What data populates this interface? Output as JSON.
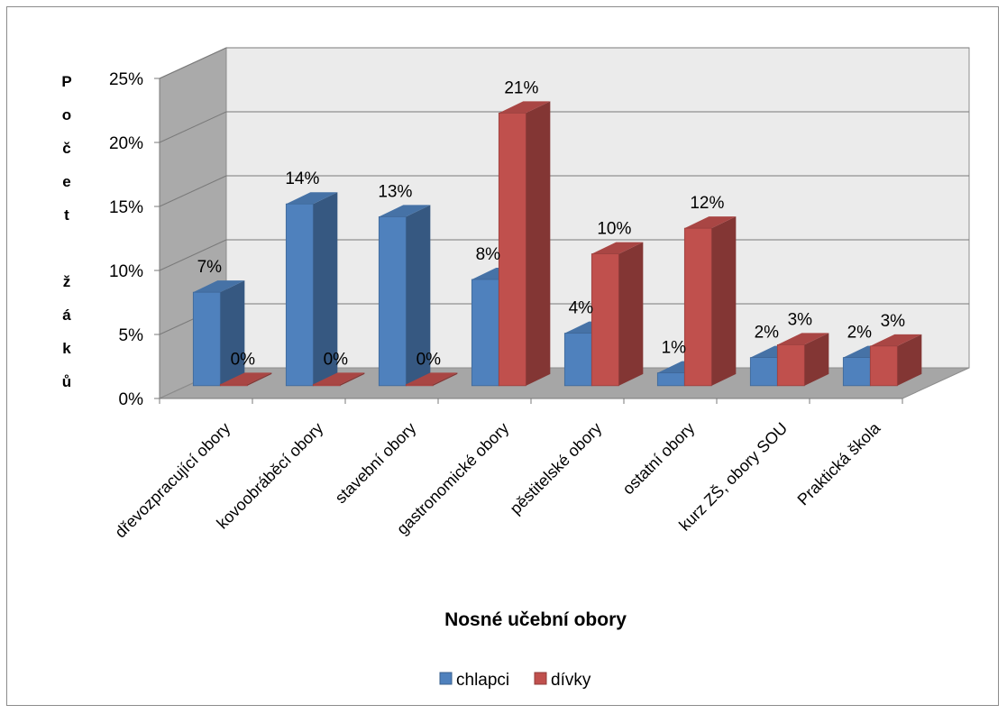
{
  "chart_data": {
    "type": "bar",
    "title": "",
    "xlabel": "Nosné učební obory",
    "ylabel_letters": [
      "P",
      "o",
      "č",
      "e",
      "t",
      "",
      "ž",
      "á",
      "k",
      "ů"
    ],
    "ylim": [
      0,
      25
    ],
    "yticks": [
      "0%",
      "5%",
      "10%",
      "15%",
      "20%",
      "25%"
    ],
    "grid": true,
    "legend_position": "bottom",
    "categories": [
      "dřevozpracující obory",
      "kovoobráběcí obory",
      "stavební obory",
      "gastronomické obory",
      "pěstitelské obory",
      "ostatní obory",
      "kurz ZŠ, obory SOU",
      "Praktická škola"
    ],
    "series": [
      {
        "name": "chlapci",
        "color": "#4f81bd",
        "values": [
          7.3,
          14.2,
          13.2,
          8.3,
          4.1,
          1.0,
          2.2,
          2.2
        ],
        "labels": [
          "7%",
          "14%",
          "13%",
          "8%",
          "4%",
          "1%",
          "2%",
          "2%"
        ]
      },
      {
        "name": "dívky",
        "color": "#c0504d",
        "values": [
          0,
          0,
          0,
          21.3,
          10.3,
          12.3,
          3.2,
          3.1
        ],
        "labels": [
          "0%",
          "0%",
          "0%",
          "21%",
          "10%",
          "12%",
          "3%",
          "3%"
        ]
      }
    ]
  }
}
